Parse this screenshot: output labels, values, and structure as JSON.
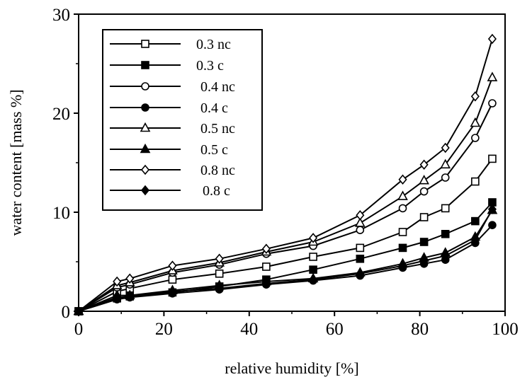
{
  "chart_data": {
    "type": "line",
    "xlabel": "relative humidity [%]",
    "ylabel": "water content [mass %]",
    "xlim": [
      0,
      100
    ],
    "ylim": [
      0,
      30
    ],
    "xticks": [
      "0",
      "20",
      "40",
      "60",
      "80",
      "100"
    ],
    "yticks": [
      "0",
      "10",
      "20",
      "30"
    ],
    "legend_position": "top-left",
    "grid": false,
    "series": [
      {
        "name": "0.3 nc",
        "marker": "square",
        "filled": false,
        "x": [
          0,
          9,
          12,
          22,
          33,
          44,
          55,
          66,
          76,
          81,
          86,
          93,
          97
        ],
        "y": [
          0,
          2.0,
          2.3,
          3.2,
          3.8,
          4.5,
          5.5,
          6.4,
          8.0,
          9.5,
          10.4,
          13.1,
          15.4
        ]
      },
      {
        "name": "0.3 c",
        "marker": "square",
        "filled": true,
        "x": [
          0,
          9,
          12,
          22,
          33,
          44,
          55,
          66,
          76,
          81,
          86,
          93,
          97
        ],
        "y": [
          0,
          1.3,
          1.5,
          1.9,
          2.5,
          3.2,
          4.2,
          5.3,
          6.4,
          7.0,
          7.8,
          9.1,
          11.0
        ]
      },
      {
        "name": "0.4 nc",
        "marker": "circle",
        "filled": false,
        "x": [
          0,
          9,
          12,
          22,
          33,
          44,
          55,
          66,
          76,
          81,
          86,
          93,
          97
        ],
        "y": [
          0,
          2.4,
          2.7,
          3.9,
          4.7,
          5.8,
          6.6,
          8.2,
          10.4,
          12.1,
          13.5,
          17.5,
          21.0
        ]
      },
      {
        "name": "0.4 c",
        "marker": "circle",
        "filled": true,
        "x": [
          0,
          9,
          12,
          22,
          33,
          44,
          55,
          66,
          76,
          81,
          86,
          93,
          97
        ],
        "y": [
          0,
          1.2,
          1.4,
          1.8,
          2.2,
          2.7,
          3.1,
          3.6,
          4.4,
          4.8,
          5.2,
          6.9,
          8.7
        ]
      },
      {
        "name": "0.5 nc",
        "marker": "triangle",
        "filled": false,
        "x": [
          0,
          9,
          12,
          22,
          33,
          44,
          55,
          66,
          76,
          81,
          86,
          93,
          97
        ],
        "y": [
          0,
          2.6,
          2.9,
          4.1,
          4.9,
          6.0,
          7.0,
          8.9,
          11.6,
          13.2,
          14.8,
          19.0,
          23.6
        ]
      },
      {
        "name": "0.5 c",
        "marker": "triangle",
        "filled": true,
        "x": [
          0,
          9,
          12,
          22,
          33,
          44,
          55,
          66,
          76,
          81,
          86,
          93,
          97
        ],
        "y": [
          0,
          1.6,
          1.6,
          2.1,
          2.6,
          3.0,
          3.3,
          3.9,
          4.8,
          5.4,
          5.9,
          7.5,
          10.2
        ]
      },
      {
        "name": "0.8 nc",
        "marker": "diamond",
        "filled": false,
        "x": [
          0,
          9,
          12,
          22,
          33,
          44,
          55,
          66,
          76,
          81,
          86,
          93,
          97
        ],
        "y": [
          0,
          3.0,
          3.3,
          4.6,
          5.3,
          6.3,
          7.4,
          9.7,
          13.3,
          14.8,
          16.5,
          21.7,
          27.5
        ]
      },
      {
        "name": "0.8 c",
        "marker": "diamond",
        "filled": true,
        "x": [
          0,
          9,
          12,
          22,
          33,
          44,
          55,
          66,
          76,
          81,
          86,
          93,
          97
        ],
        "y": [
          0,
          1.4,
          1.5,
          2.0,
          2.3,
          2.8,
          3.2,
          3.8,
          4.6,
          5.1,
          5.6,
          7.2,
          10.3
        ]
      }
    ]
  }
}
